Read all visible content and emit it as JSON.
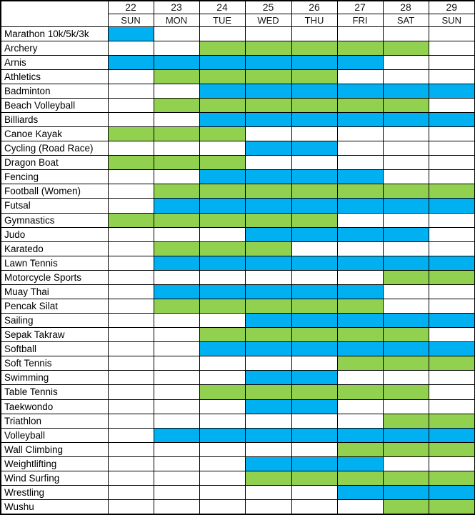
{
  "colors": {
    "blue": "#00B0F0",
    "green": "#92D050",
    "grid": "#000000",
    "background": "#FFFFFF",
    "text": "#000000"
  },
  "table": {
    "corner_label": "",
    "dates": [
      "22",
      "23",
      "24",
      "25",
      "26",
      "27",
      "28",
      "29"
    ],
    "days": [
      "SUN",
      "MON",
      "TUE",
      "WED",
      "THU",
      "FRI",
      "SAT",
      "SUN"
    ]
  },
  "chart_data": {
    "type": "heatmap",
    "x_dates": [
      22,
      23,
      24,
      25,
      26,
      27,
      28,
      29
    ],
    "x_days": [
      "SUN",
      "MON",
      "TUE",
      "WED",
      "THU",
      "FRI",
      "SAT",
      "SUN"
    ],
    "y_sports": [
      "Marathon 10k/5k/3k",
      "Archery",
      "Arnis",
      "Athletics",
      "Badminton",
      "Beach Volleyball",
      "Billiards",
      "Canoe Kayak",
      "Cycling (Road Race)",
      "Dragon Boat",
      "Fencing",
      "Football (Women)",
      "Futsal",
      "Gymnastics",
      "Judo",
      "Karatedo",
      "Lawn Tennis",
      "Motorcycle Sports",
      "Muay Thai",
      "Pencak Silat",
      "Sailing",
      "Sepak Takraw",
      "Softball",
      "Soft Tennis",
      "Swimming",
      "Table Tennis",
      "Taekwondo",
      "Triathlon",
      "Volleyball",
      "Wall Climbing",
      "Weightlifting",
      "Wind Surfing",
      "Wrestling",
      "Wushu"
    ],
    "palette": {
      "blue": "#00B0F0",
      "green": "#92D050",
      "empty": "#FFFFFF"
    },
    "legend": "none",
    "grid": true,
    "rows": [
      {
        "sport": "Marathon 10k/5k/3k",
        "color": "blue",
        "scheduled_dates": [
          22
        ]
      },
      {
        "sport": "Archery",
        "color": "green",
        "scheduled_dates": [
          24,
          25,
          26,
          27,
          28
        ]
      },
      {
        "sport": "Arnis",
        "color": "blue",
        "scheduled_dates": [
          22,
          23,
          24,
          25,
          26,
          27
        ]
      },
      {
        "sport": "Athletics",
        "color": "green",
        "scheduled_dates": [
          23,
          24,
          25,
          26
        ]
      },
      {
        "sport": "Badminton",
        "color": "blue",
        "scheduled_dates": [
          24,
          25,
          26,
          27,
          28,
          29
        ]
      },
      {
        "sport": "Beach Volleyball",
        "color": "green",
        "scheduled_dates": [
          23,
          24,
          25,
          26,
          27,
          28
        ]
      },
      {
        "sport": "Billiards",
        "color": "blue",
        "scheduled_dates": [
          24,
          25,
          26,
          27,
          28,
          29
        ]
      },
      {
        "sport": "Canoe Kayak",
        "color": "green",
        "scheduled_dates": [
          22,
          23,
          24
        ]
      },
      {
        "sport": "Cycling (Road Race)",
        "color": "blue",
        "scheduled_dates": [
          25,
          26
        ]
      },
      {
        "sport": "Dragon Boat",
        "color": "green",
        "scheduled_dates": [
          22,
          23,
          24
        ]
      },
      {
        "sport": "Fencing",
        "color": "blue",
        "scheduled_dates": [
          24,
          25,
          26,
          27
        ]
      },
      {
        "sport": "Football (Women)",
        "color": "green",
        "scheduled_dates": [
          23,
          24,
          25,
          26,
          27,
          28,
          29
        ]
      },
      {
        "sport": "Futsal",
        "color": "blue",
        "scheduled_dates": [
          23,
          24,
          25,
          26,
          27,
          28,
          29
        ]
      },
      {
        "sport": "Gymnastics",
        "color": "green",
        "scheduled_dates": [
          22,
          23,
          24,
          25,
          26
        ]
      },
      {
        "sport": "Judo",
        "color": "blue",
        "scheduled_dates": [
          25,
          26,
          27,
          28
        ]
      },
      {
        "sport": "Karatedo",
        "color": "green",
        "scheduled_dates": [
          23,
          24,
          25
        ]
      },
      {
        "sport": "Lawn Tennis",
        "color": "blue",
        "scheduled_dates": [
          23,
          24,
          25,
          26,
          27,
          28,
          29
        ]
      },
      {
        "sport": "Motorcycle Sports",
        "color": "green",
        "scheduled_dates": [
          28,
          29
        ]
      },
      {
        "sport": "Muay Thai",
        "color": "blue",
        "scheduled_dates": [
          23,
          24,
          25,
          26,
          27
        ]
      },
      {
        "sport": "Pencak Silat",
        "color": "green",
        "scheduled_dates": [
          23,
          24,
          25,
          26,
          27
        ]
      },
      {
        "sport": "Sailing",
        "color": "blue",
        "scheduled_dates": [
          25,
          26,
          27,
          28,
          29
        ]
      },
      {
        "sport": "Sepak Takraw",
        "color": "green",
        "scheduled_dates": [
          24,
          25,
          26,
          27,
          28
        ]
      },
      {
        "sport": "Softball",
        "color": "blue",
        "scheduled_dates": [
          24,
          25,
          26,
          27,
          28,
          29
        ]
      },
      {
        "sport": "Soft Tennis",
        "color": "green",
        "scheduled_dates": [
          27,
          28,
          29
        ]
      },
      {
        "sport": "Swimming",
        "color": "blue",
        "scheduled_dates": [
          25,
          26
        ]
      },
      {
        "sport": "Table Tennis",
        "color": "green",
        "scheduled_dates": [
          24,
          25,
          26,
          27,
          28
        ]
      },
      {
        "sport": "Taekwondo",
        "color": "blue",
        "scheduled_dates": [
          25,
          26
        ]
      },
      {
        "sport": "Triathlon",
        "color": "green",
        "scheduled_dates": [
          28,
          29
        ]
      },
      {
        "sport": "Volleyball",
        "color": "blue",
        "scheduled_dates": [
          23,
          24,
          25,
          26,
          27,
          28,
          29
        ]
      },
      {
        "sport": "Wall Climbing",
        "color": "green",
        "scheduled_dates": [
          27,
          28,
          29
        ]
      },
      {
        "sport": "Weightlifting",
        "color": "blue",
        "scheduled_dates": [
          25,
          26,
          27
        ]
      },
      {
        "sport": "Wind Surfing",
        "color": "green",
        "scheduled_dates": [
          25,
          26,
          27,
          28,
          29
        ]
      },
      {
        "sport": "Wrestling",
        "color": "blue",
        "scheduled_dates": [
          27,
          28,
          29
        ]
      },
      {
        "sport": "Wushu",
        "color": "green",
        "scheduled_dates": [
          28,
          29
        ]
      }
    ]
  }
}
